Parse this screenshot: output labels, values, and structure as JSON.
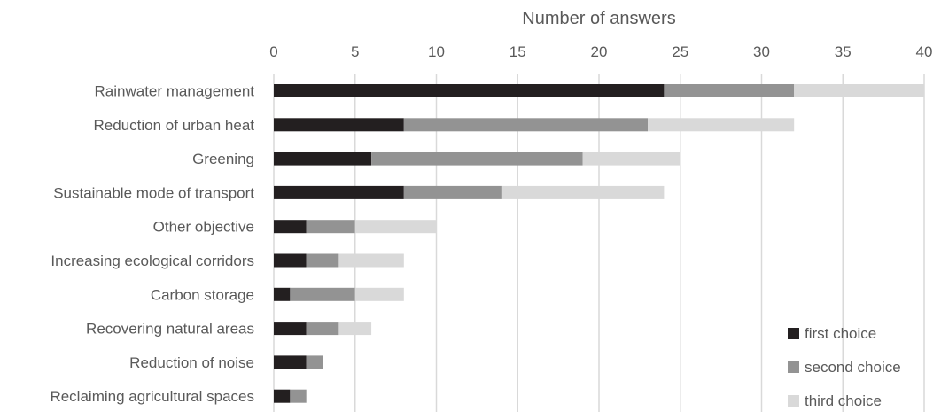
{
  "chart_data": {
    "type": "bar",
    "orientation": "horizontal",
    "stacked": true,
    "title": "",
    "xlabel": "Number of answers",
    "xlim": [
      0,
      40
    ],
    "xticks": [
      0,
      5,
      10,
      15,
      20,
      25,
      30,
      35,
      40
    ],
    "grid": true,
    "categories": [
      "Rainwater management",
      "Reduction of urban heat",
      "Greening",
      "Sustainable mode of transport",
      "Other objective",
      "Increasing ecological corridors",
      "Carbon storage",
      "Recovering natural areas",
      "Reduction of noise",
      "Reclaiming agricultural spaces"
    ],
    "series": [
      {
        "name": "first choice",
        "color": "#231f20",
        "values": [
          24,
          8,
          6,
          8,
          2,
          2,
          1,
          2,
          2,
          1
        ]
      },
      {
        "name": "second choice",
        "color": "#939393",
        "values": [
          8,
          15,
          13,
          6,
          3,
          2,
          4,
          2,
          1,
          1
        ]
      },
      {
        "name": "third choice",
        "color": "#d9d9d9",
        "values": [
          8,
          9,
          6,
          10,
          5,
          4,
          3,
          2,
          0,
          0
        ]
      }
    ],
    "legend_position": "bottom-right"
  }
}
